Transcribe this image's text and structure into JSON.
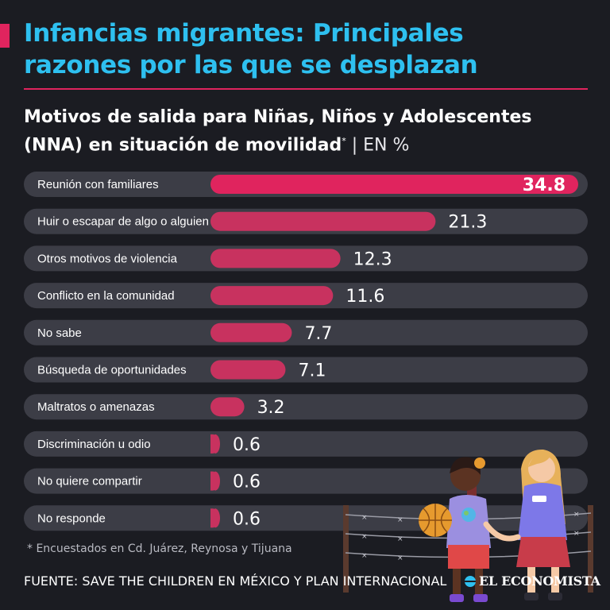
{
  "header": {
    "title_line1": "Infancias migrantes: Principales",
    "title_line2": "razones por las que se desplazan",
    "subtitle_line1": "Motivos de salida para Niñas, Niños y Adolescentes",
    "subtitle_line2": "(NNA) en situación de movilidad",
    "subtitle_mark": "*",
    "subtitle_unit": " | EN %"
  },
  "colors": {
    "background": "#1b1c22",
    "title": "#2ec0f0",
    "accent": "#e0245e",
    "bar": "#c8325f",
    "bar_top": "#e0245e",
    "track": "#3c3d46"
  },
  "chart_data": {
    "type": "bar",
    "orientation": "horizontal",
    "categories": [
      "Reunión con familiares",
      "Huir o escapar de algo o alguien",
      "Otros motivos de violencia",
      "Conflicto en la comunidad",
      "No sabe",
      "Búsqueda de oportunidades",
      "Maltratos o amenazas",
      "Discriminación u odio",
      "No quiere compartir",
      "No responde"
    ],
    "values": [
      34.8,
      21.3,
      12.3,
      11.6,
      7.7,
      7.1,
      3.2,
      0.6,
      0.6,
      0.6
    ],
    "value_labels": [
      "34.8",
      "21.3",
      "12.3",
      "11.6",
      "7.7",
      "7.1",
      "3.2",
      "0.6",
      "0.6",
      "0.6"
    ],
    "xlim": [
      0,
      34.8
    ],
    "unit": "%"
  },
  "footer": {
    "footnote": "* Encuestados en Cd. Juárez, Reynosa y Tijuana",
    "source": "FUENTE: SAVE THE CHILDREN EN MÉXICO Y PLAN INTERNACIONAL",
    "brand": "EL ECONOMISTA"
  },
  "illustration": {
    "icon": "two-children-at-fence-illustration"
  }
}
